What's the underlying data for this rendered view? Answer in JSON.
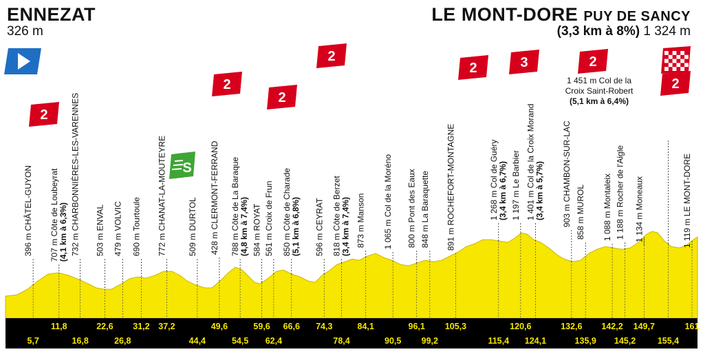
{
  "start": {
    "name": "ENNEZAT",
    "altitude": "326 m"
  },
  "finish": {
    "name": "LE MONT-DORE",
    "subname": "PUY DE SANCY",
    "climb": "(3,3 km à 8%)",
    "altitude": "1 324 m"
  },
  "colors": {
    "profile": "#f6e600",
    "km_band": "#000000",
    "km_text": "#f6e600",
    "climb_badge": "#d6001c",
    "sprint_badge": "#3fa535",
    "start_flag": "#1e6fc4"
  },
  "markers": [
    {
      "km": 5.7,
      "label": "396 m CHÂTEL-GUYON"
    },
    {
      "km": 11.8,
      "label": "707 m Côte de Loubeyrat",
      "climb_info": "(4,1 km à 6,3%)",
      "category": "2"
    },
    {
      "km": 16.8,
      "label": "732 m CHARBONNIÈRES-LES-VARENNES"
    },
    {
      "km": 22.6,
      "label": "503 m ENVAL"
    },
    {
      "km": 26.8,
      "label": "479 m VOLVIC"
    },
    {
      "km": 31.2,
      "label": "690 m Tourtoule"
    },
    {
      "km": 37.2,
      "label": "772 m CHANAT-LA-MOUTEYRE"
    },
    {
      "km": 44.4,
      "label": "509 m DURTOL",
      "sprint": "S"
    },
    {
      "km": 49.6,
      "label": "428 m CLERMONT-FERRAND"
    },
    {
      "km": 54.5,
      "label": "788 m Côte de La Baraque",
      "climb_info": "(4,8 km à 7,4%)",
      "category": "2"
    },
    {
      "km": 59.6,
      "label": "584 m ROYAT"
    },
    {
      "km": 62.4,
      "label": "561 m Croix de Frun"
    },
    {
      "km": 66.6,
      "label": "850 m Côte de Charade",
      "climb_info": "(5,1 km à 6,8%)",
      "category": "2"
    },
    {
      "km": 74.3,
      "label": "596 m CEYRAT"
    },
    {
      "km": 78.4,
      "label": "818 m Côte de Berzet",
      "climb_info": "(3,4 km à 7,4%)",
      "category": "2"
    },
    {
      "km": 84.1,
      "label": "873 m Manson"
    },
    {
      "km": 90.5,
      "label": "1 065 m Col de la Moréno"
    },
    {
      "km": 96.1,
      "label": "800 m Pont des Eaux"
    },
    {
      "km": 99.2,
      "label": "848 m La Baraquette"
    },
    {
      "km": 105.3,
      "label": "891 m ROCHEFORT-MONTAGNE"
    },
    {
      "km": 115.4,
      "label": "1 268 m Col de Guéry",
      "climb_info": "(3,4 km à 6,7%)",
      "category": "2"
    },
    {
      "km": 120.6,
      "label": "1 197 m Le Barbier"
    },
    {
      "km": 124.1,
      "label": "1 401 m Col de la Croix Morand",
      "climb_info": "(3,4 km à 5,7%)",
      "category": "3"
    },
    {
      "km": 132.6,
      "label": "903 m CHAMBON-SUR-LAC"
    },
    {
      "km": 135.9,
      "label": "858 m MUROL"
    },
    {
      "km": 142.2,
      "label": "1 088 m Montaleix"
    },
    {
      "km": 145.2,
      "label": "1 188 m Rocher de l'Aigle"
    },
    {
      "km": 149.7,
      "label": "1 134 m Moneaux"
    },
    {
      "km": 155.4,
      "label": "1 451 m Col de la Croix Saint-Robert",
      "climb_info": "(5,1 km à 6,4%)",
      "category": "2"
    },
    {
      "km": 161,
      "label": "1 119 m LE MONT-DORE"
    }
  ],
  "km_row_top": [
    "11,8",
    "22,6",
    "31,2",
    "37,2",
    "49,6",
    "59,6",
    "66,6",
    "74,3",
    "84,1",
    "96,1",
    "105,3",
    "120,6",
    "132,6",
    "142,2",
    "149,7",
    "161"
  ],
  "km_row_bottom": [
    "5,7",
    "16,8",
    "26,8",
    "44,4",
    "54,5",
    "62,4",
    "78,4",
    "90,5",
    "99,2",
    "115,4",
    "124,1",
    "135,9",
    "145,2",
    "155,4"
  ],
  "badges": {
    "col_loubeyrat": "2",
    "la_baraque": "2",
    "charade": "2",
    "berzet": "2",
    "guery": "2",
    "croix_morand": "3",
    "croix_saint_robert": "2",
    "finish": "2",
    "sprint": "S"
  },
  "robert_label": {
    "line1": "1 451 m Col de la",
    "line2": "Croix Saint-Robert",
    "line3": "(5,1 km à 6,4%)"
  }
}
